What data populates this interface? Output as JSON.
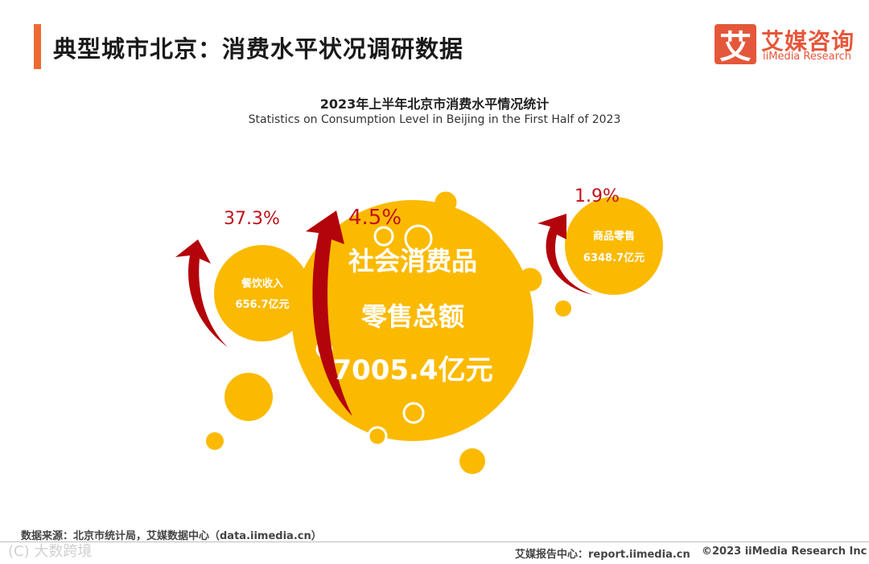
{
  "header": {
    "title": "典型城市北京：消费水平状况调研数据",
    "logo_mark": "艾",
    "logo_cn": "艾媒咨询",
    "logo_en": "iiMedia Research"
  },
  "chart_data": {
    "type": "bubble",
    "title": "2023年上半年北京市消费水平情况统计",
    "subtitle": "Statistics on Consumption Level in Beijing in the First Half of 2023",
    "bubbles": [
      {
        "label_lines": [
          "社会消费品",
          "零售总额"
        ],
        "value": 7005.4,
        "value_text": "7005.4亿元",
        "growth": "4.5%"
      },
      {
        "label_lines": [
          "餐饮收入"
        ],
        "value": 656.7,
        "value_text": "656.7亿元",
        "growth": "37.3%"
      },
      {
        "label_lines": [
          "商品零售"
        ],
        "value": 6348.7,
        "value_text": "6348.7亿元",
        "growth": "1.9%"
      }
    ],
    "colors": {
      "bubble": "#fbba00",
      "arrow": "#b3030b",
      "growth_text": "#c0121b",
      "label_text": "#ffffff"
    }
  },
  "footer": {
    "source": "数据来源：北京市统计局，艾媒数据中心（data.iimedia.cn）",
    "report_center": "艾媒报告中心：report.iimedia.cn",
    "copyright": "©2023  iiMedia Research  Inc",
    "watermark": "(C) 大数跨境"
  }
}
